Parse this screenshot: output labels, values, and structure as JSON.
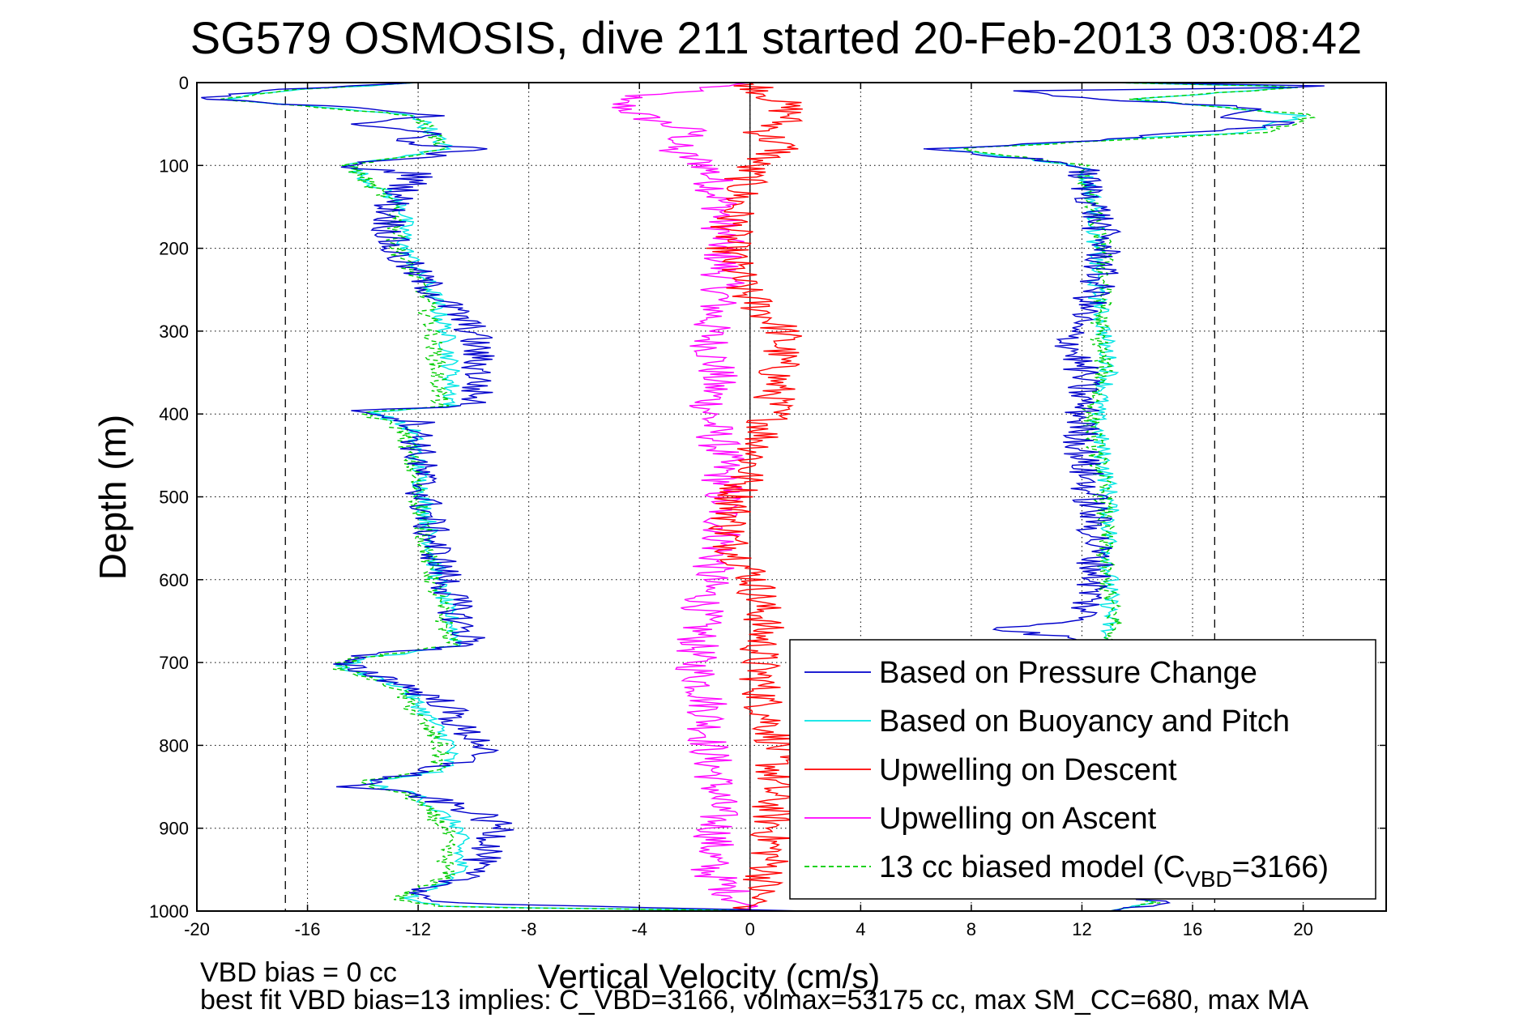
{
  "chart_data": {
    "type": "line",
    "title": "SG579 OSMOSIS, dive 211 started 20-Feb-2013 03:08:42",
    "xlabel": "Vertical Velocity (cm/s)",
    "ylabel": "Depth (m)",
    "xlim": [
      -20,
      23
    ],
    "ylim": [
      1000,
      0
    ],
    "y_reversed": true,
    "xticks": [
      -20,
      -16,
      -12,
      -8,
      -4,
      0,
      4,
      8,
      12,
      16,
      20
    ],
    "yticks": [
      0,
      100,
      200,
      300,
      400,
      500,
      600,
      700,
      800,
      900,
      1000
    ],
    "grid": true,
    "legend_position": "bottom-right",
    "reference_lines": [
      -16.8,
      0,
      16.8
    ],
    "series": [
      {
        "name": "Based on Pressure Change",
        "color": "#0000cc",
        "dash": "solid",
        "descent": [
          [
            0,
            -12
          ],
          [
            10,
            -18
          ],
          [
            20,
            -20
          ],
          [
            30,
            -14
          ],
          [
            40,
            -11
          ],
          [
            50,
            -15
          ],
          [
            60,
            -11
          ],
          [
            70,
            -13
          ],
          [
            80,
            -10
          ],
          [
            90,
            -12
          ],
          [
            100,
            -15
          ],
          [
            110,
            -12
          ],
          [
            150,
            -13
          ],
          [
            200,
            -13
          ],
          [
            250,
            -11.5
          ],
          [
            300,
            -10
          ],
          [
            350,
            -9.8
          ],
          [
            390,
            -10
          ],
          [
            395,
            -14
          ],
          [
            410,
            -12
          ],
          [
            450,
            -12
          ],
          [
            500,
            -11.8
          ],
          [
            550,
            -11.5
          ],
          [
            600,
            -11
          ],
          [
            650,
            -10.5
          ],
          [
            680,
            -10
          ],
          [
            690,
            -14
          ],
          [
            700,
            -15
          ],
          [
            720,
            -13
          ],
          [
            750,
            -11
          ],
          [
            780,
            -10.5
          ],
          [
            800,
            -9.5
          ],
          [
            820,
            -10.5
          ],
          [
            840,
            -13
          ],
          [
            850,
            -14.5
          ],
          [
            860,
            -12
          ],
          [
            880,
            -10
          ],
          [
            900,
            -9
          ],
          [
            930,
            -9.5
          ],
          [
            960,
            -10.5
          ],
          [
            980,
            -12
          ],
          [
            990,
            -11
          ],
          [
            1000,
            2
          ]
        ],
        "ascent": [
          [
            1000,
            13
          ],
          [
            990,
            15
          ],
          [
            980,
            13
          ],
          [
            950,
            12.8
          ],
          [
            900,
            12.8
          ],
          [
            850,
            12.5
          ],
          [
            800,
            12.3
          ],
          [
            750,
            12
          ],
          [
            700,
            12
          ],
          [
            670,
            11.5
          ],
          [
            660,
            9
          ],
          [
            650,
            12
          ],
          [
            600,
            12.5
          ],
          [
            550,
            12.5
          ],
          [
            500,
            12.3
          ],
          [
            450,
            12
          ],
          [
            400,
            12
          ],
          [
            350,
            12
          ],
          [
            300,
            11.5
          ],
          [
            280,
            12
          ],
          [
            250,
            12.5
          ],
          [
            200,
            12.8
          ],
          [
            150,
            12.5
          ],
          [
            110,
            12
          ],
          [
            100,
            12
          ],
          [
            90,
            9.5
          ],
          [
            80,
            6.5
          ],
          [
            70,
            12
          ],
          [
            60,
            16
          ],
          [
            50,
            20
          ],
          [
            40,
            17
          ],
          [
            30,
            18
          ],
          [
            20,
            13
          ],
          [
            10,
            9
          ],
          [
            5,
            22
          ],
          [
            0,
            14
          ]
        ]
      },
      {
        "name": "Based on Buoyancy and Pitch",
        "color": "#00e5e5",
        "dash": "solid",
        "descent": [
          [
            0,
            -12
          ],
          [
            10,
            -17
          ],
          [
            20,
            -19
          ],
          [
            40,
            -12
          ],
          [
            60,
            -11.5
          ],
          [
            80,
            -11
          ],
          [
            100,
            -14.5
          ],
          [
            150,
            -12.5
          ],
          [
            200,
            -12.5
          ],
          [
            250,
            -11.5
          ],
          [
            300,
            -11
          ],
          [
            350,
            -10.8
          ],
          [
            390,
            -10.8
          ],
          [
            398,
            -13.5
          ],
          [
            420,
            -12.2
          ],
          [
            500,
            -11.8
          ],
          [
            600,
            -11.3
          ],
          [
            680,
            -10.5
          ],
          [
            695,
            -14
          ],
          [
            705,
            -14.8
          ],
          [
            730,
            -12.5
          ],
          [
            800,
            -10.8
          ],
          [
            830,
            -11
          ],
          [
            845,
            -14
          ],
          [
            860,
            -12
          ],
          [
            900,
            -10.5
          ],
          [
            960,
            -10.5
          ],
          [
            985,
            -12.5
          ],
          [
            995,
            -11
          ],
          [
            1000,
            2
          ]
        ],
        "ascent": [
          [
            1000,
            13
          ],
          [
            990,
            14.5
          ],
          [
            950,
            12.8
          ],
          [
            900,
            12.8
          ],
          [
            800,
            12.8
          ],
          [
            700,
            12.5
          ],
          [
            650,
            13
          ],
          [
            600,
            13
          ],
          [
            500,
            13
          ],
          [
            400,
            12.5
          ],
          [
            350,
            13
          ],
          [
            300,
            12.8
          ],
          [
            250,
            12.5
          ],
          [
            200,
            12.5
          ],
          [
            150,
            12.5
          ],
          [
            100,
            12
          ],
          [
            80,
            7
          ],
          [
            60,
            18
          ],
          [
            40,
            20
          ],
          [
            20,
            14
          ],
          [
            5,
            20
          ],
          [
            0,
            13
          ]
        ]
      },
      {
        "name": "Upwelling on Descent",
        "color": "#ff0000",
        "dash": "solid",
        "values": [
          [
            0,
            0
          ],
          [
            20,
            1
          ],
          [
            40,
            1.5
          ],
          [
            60,
            0.5
          ],
          [
            80,
            1.2
          ],
          [
            100,
            0
          ],
          [
            150,
            -0.5
          ],
          [
            200,
            -0.8
          ],
          [
            250,
            -0.3
          ],
          [
            300,
            1.2
          ],
          [
            350,
            1
          ],
          [
            400,
            0.8
          ],
          [
            450,
            0.2
          ],
          [
            500,
            -0.5
          ],
          [
            550,
            -0.8
          ],
          [
            600,
            0.2
          ],
          [
            650,
            0.5
          ],
          [
            700,
            0.3
          ],
          [
            750,
            0.5
          ],
          [
            800,
            1
          ],
          [
            850,
            0.8
          ],
          [
            900,
            0.8
          ],
          [
            950,
            0.7
          ],
          [
            1000,
            0
          ]
        ]
      },
      {
        "name": "Upwelling on Ascent",
        "color": "#ff00ff",
        "dash": "solid",
        "values": [
          [
            0,
            0
          ],
          [
            20,
            -5
          ],
          [
            40,
            -4
          ],
          [
            60,
            -2
          ],
          [
            80,
            -3
          ],
          [
            100,
            -1.5
          ],
          [
            150,
            -1
          ],
          [
            200,
            -1
          ],
          [
            250,
            -1
          ],
          [
            300,
            -1.5
          ],
          [
            350,
            -1.2
          ],
          [
            400,
            -1.5
          ],
          [
            450,
            -1
          ],
          [
            500,
            -1
          ],
          [
            550,
            -1
          ],
          [
            600,
            -1.5
          ],
          [
            650,
            -1.8
          ],
          [
            700,
            -2
          ],
          [
            750,
            -1.5
          ],
          [
            800,
            -1.5
          ],
          [
            850,
            -1.2
          ],
          [
            900,
            -1.2
          ],
          [
            950,
            -1.5
          ],
          [
            1000,
            0
          ]
        ]
      },
      {
        "name": "13 cc biased model (C",
        "name_sub": "VBD",
        "name_tail": "=3166)",
        "color": "#00cc00",
        "dash": "dashed",
        "descent": [
          [
            0,
            -12
          ],
          [
            10,
            -17
          ],
          [
            20,
            -19
          ],
          [
            40,
            -12
          ],
          [
            60,
            -11.5
          ],
          [
            80,
            -11
          ],
          [
            100,
            -14.5
          ],
          [
            150,
            -12.8
          ],
          [
            200,
            -12.8
          ],
          [
            250,
            -11.8
          ],
          [
            300,
            -11.5
          ],
          [
            350,
            -11.3
          ],
          [
            390,
            -11.2
          ],
          [
            398,
            -14
          ],
          [
            420,
            -12.5
          ],
          [
            500,
            -12
          ],
          [
            600,
            -11.5
          ],
          [
            680,
            -10.8
          ],
          [
            695,
            -14.2
          ],
          [
            705,
            -15
          ],
          [
            730,
            -12.8
          ],
          [
            800,
            -11.2
          ],
          [
            830,
            -11.3
          ],
          [
            845,
            -14.3
          ],
          [
            860,
            -12.3
          ],
          [
            900,
            -11
          ],
          [
            960,
            -11
          ],
          [
            985,
            -12.8
          ],
          [
            995,
            -11.3
          ],
          [
            1000,
            2
          ]
        ],
        "ascent": [
          [
            1000,
            13
          ],
          [
            990,
            14.5
          ],
          [
            950,
            12.6
          ],
          [
            900,
            12.6
          ],
          [
            800,
            12.6
          ],
          [
            700,
            12.8
          ],
          [
            650,
            13.2
          ],
          [
            600,
            12.8
          ],
          [
            500,
            12.8
          ],
          [
            400,
            12.3
          ],
          [
            350,
            12.8
          ],
          [
            300,
            12.6
          ],
          [
            250,
            12.8
          ],
          [
            200,
            12.8
          ],
          [
            150,
            12.3
          ],
          [
            100,
            12
          ],
          [
            80,
            7.5
          ],
          [
            60,
            18.5
          ],
          [
            40,
            20.5
          ],
          [
            20,
            14
          ],
          [
            5,
            20
          ],
          [
            0,
            13
          ]
        ]
      }
    ]
  },
  "footer": {
    "line1": "VBD bias = 0 cc",
    "line2": "best fit VBD bias=13 implies: C_VBD=3166, volmax=53175 cc, max SM_CC=680, max MA"
  }
}
